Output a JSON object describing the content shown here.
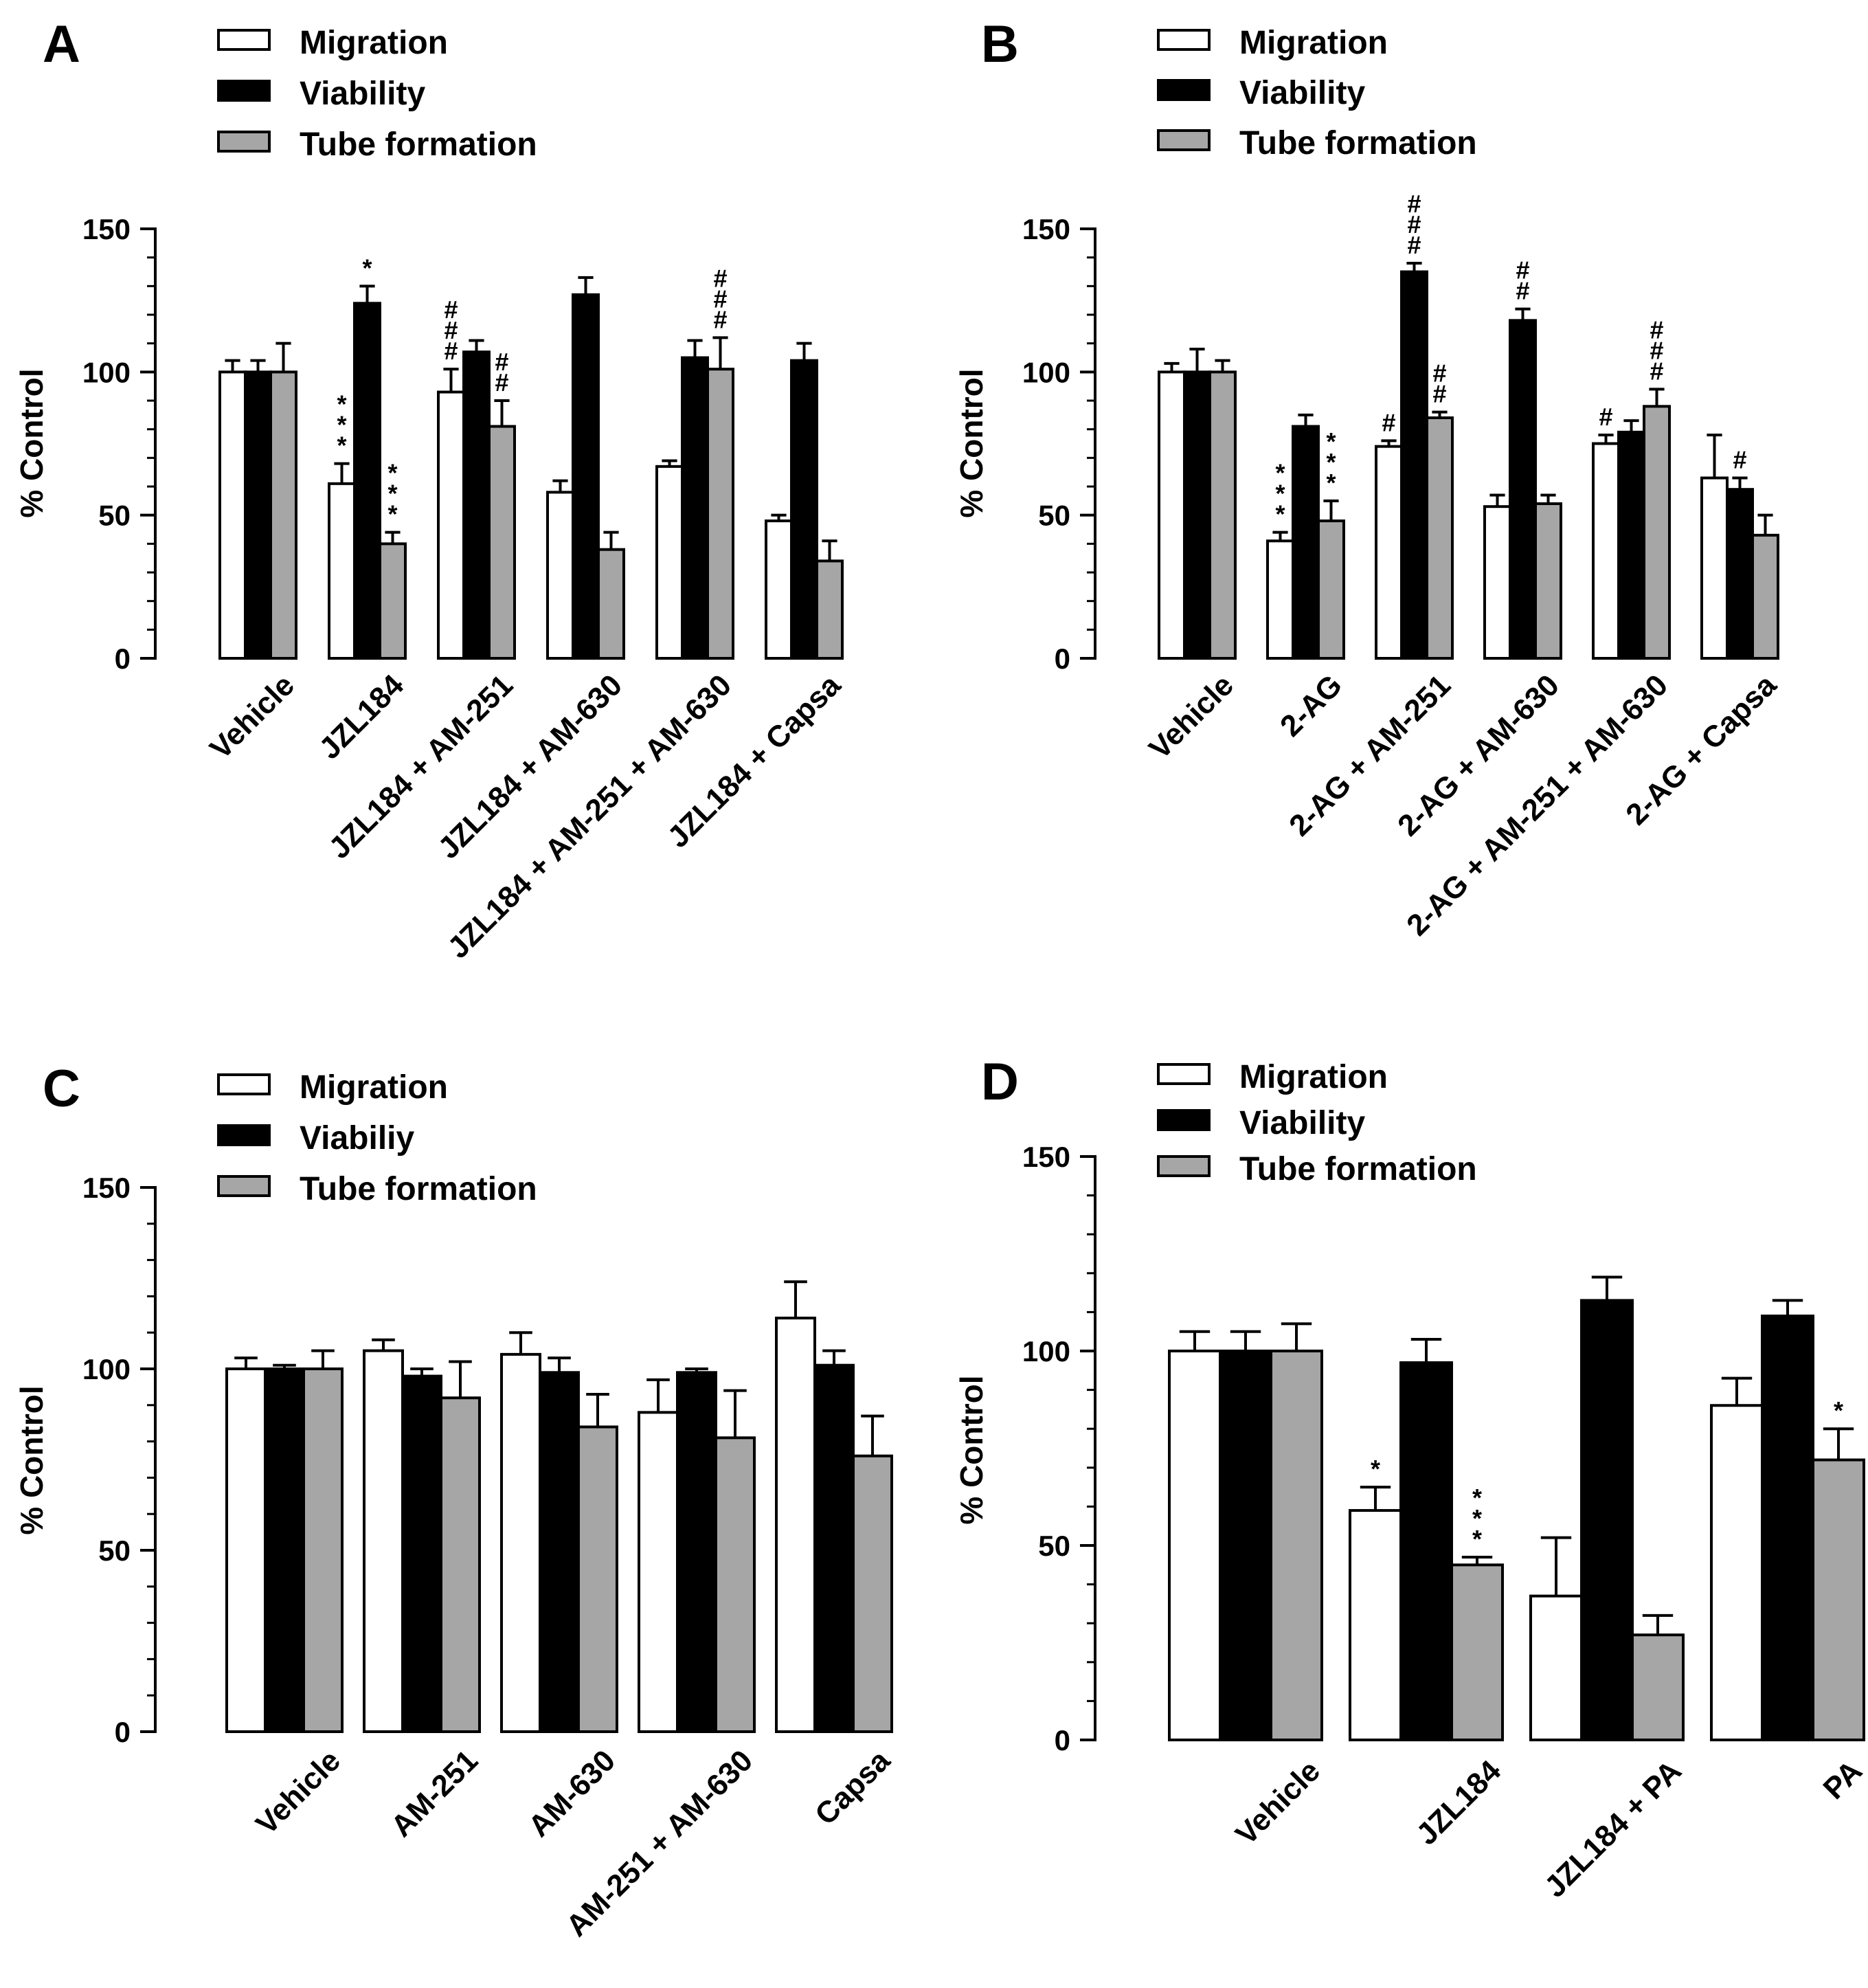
{
  "colors": {
    "migration": "#ffffff",
    "viability": "#000000",
    "tube_formation": "#a6a6a6",
    "stroke": "#000000"
  },
  "chart_data": [
    {
      "type": "bar",
      "panel": "A",
      "title": "",
      "xlabel": "",
      "ylabel": "% Control",
      "ylim": [
        0,
        150
      ],
      "yticks": [
        0,
        50,
        100,
        150
      ],
      "legend": [
        "Migration",
        "Viability",
        "Tube formation"
      ],
      "legend_position": "top-left",
      "categories": [
        "Vehicle",
        "JZL184",
        "JZL184 + AM-251",
        "JZL184 + AM-630",
        "JZL184 + AM-251 + AM-630",
        "JZL184 + Capsa"
      ],
      "series": [
        {
          "name": "Migration",
          "values": [
            100,
            61,
            93,
            58,
            67,
            48
          ],
          "errors": [
            4,
            7,
            8,
            4,
            2,
            2
          ],
          "annotations": [
            "",
            "***",
            "###",
            "",
            "",
            ""
          ]
        },
        {
          "name": "Viability",
          "values": [
            100,
            124,
            107,
            127,
            105,
            104
          ],
          "errors": [
            4,
            6,
            4,
            6,
            6,
            6
          ],
          "annotations": [
            "",
            "*",
            "",
            "",
            "",
            ""
          ]
        },
        {
          "name": "Tube formation",
          "values": [
            100,
            40,
            81,
            38,
            101,
            34
          ],
          "errors": [
            10,
            4,
            9,
            6,
            11,
            7
          ],
          "annotations": [
            "",
            "***",
            "##",
            "",
            "###",
            ""
          ]
        }
      ]
    },
    {
      "type": "bar",
      "panel": "B",
      "title": "",
      "xlabel": "",
      "ylabel": "% Control",
      "ylim": [
        0,
        150
      ],
      "yticks": [
        0,
        50,
        100,
        150
      ],
      "legend": [
        "Migration",
        "Viability",
        "Tube formation"
      ],
      "legend_position": "top-left",
      "categories": [
        "Vehicle",
        "2-AG",
        "2-AG + AM-251",
        "2-AG + AM-630",
        "2-AG + AM-251 + AM-630",
        "2-AG + Capsa"
      ],
      "series": [
        {
          "name": "Migration",
          "values": [
            100,
            41,
            74,
            53,
            75,
            63
          ],
          "errors": [
            3,
            3,
            2,
            4,
            3,
            15
          ],
          "annotations": [
            "",
            "***",
            "#",
            "",
            "#",
            ""
          ]
        },
        {
          "name": "Viability",
          "values": [
            100,
            81,
            135,
            118,
            79,
            59
          ],
          "errors": [
            8,
            4,
            3,
            4,
            4,
            4
          ],
          "annotations": [
            "",
            "",
            "###",
            "##",
            "",
            "#"
          ]
        },
        {
          "name": "Tube formation",
          "values": [
            100,
            48,
            84,
            54,
            88,
            43
          ],
          "errors": [
            4,
            7,
            2,
            3,
            6,
            7
          ],
          "annotations": [
            "",
            "***",
            "##",
            "",
            "###",
            ""
          ]
        }
      ]
    },
    {
      "type": "bar",
      "panel": "C",
      "title": "",
      "xlabel": "",
      "ylabel": "% Control",
      "ylim": [
        0,
        150
      ],
      "yticks": [
        0,
        50,
        100,
        150
      ],
      "legend": [
        "Migration",
        "Viabiliy",
        "Tube formation"
      ],
      "legend_position": "top-left",
      "categories": [
        "Vehicle",
        "AM-251",
        "AM-630",
        "AM-251 + AM-630",
        "Capsa"
      ],
      "series": [
        {
          "name": "Migration",
          "values": [
            100,
            105,
            104,
            88,
            114
          ],
          "errors": [
            3,
            3,
            6,
            9,
            10
          ],
          "annotations": [
            "",
            "",
            "",
            "",
            ""
          ]
        },
        {
          "name": "Viabiliy",
          "values": [
            100,
            98,
            99,
            99,
            101
          ],
          "errors": [
            1,
            2,
            4,
            1,
            4
          ],
          "annotations": [
            "",
            "",
            "",
            "",
            ""
          ]
        },
        {
          "name": "Tube formation",
          "values": [
            100,
            92,
            84,
            81,
            76
          ],
          "errors": [
            5,
            10,
            9,
            13,
            11
          ],
          "annotations": [
            "",
            "",
            "",
            "",
            ""
          ]
        }
      ]
    },
    {
      "type": "bar",
      "panel": "D",
      "title": "",
      "xlabel": "",
      "ylabel": "% Control",
      "ylim": [
        0,
        150
      ],
      "yticks": [
        0,
        50,
        100,
        150
      ],
      "legend": [
        "Migration",
        "Viability",
        "Tube formation"
      ],
      "legend_position": "top-left",
      "categories": [
        "Vehicle",
        "JZL184",
        "JZL184 + PA",
        "PA"
      ],
      "series": [
        {
          "name": "Migration",
          "values": [
            100,
            59,
            37,
            86
          ],
          "errors": [
            5,
            6,
            15,
            7
          ],
          "annotations": [
            "",
            "*",
            "",
            ""
          ]
        },
        {
          "name": "Viability",
          "values": [
            100,
            97,
            113,
            109
          ],
          "errors": [
            5,
            6,
            6,
            4
          ],
          "annotations": [
            "",
            "",
            "",
            ""
          ]
        },
        {
          "name": "Tube formation",
          "values": [
            100,
            45,
            27,
            72
          ],
          "errors": [
            7,
            2,
            5,
            8
          ],
          "annotations": [
            "",
            "***",
            "",
            "*"
          ]
        }
      ]
    }
  ]
}
